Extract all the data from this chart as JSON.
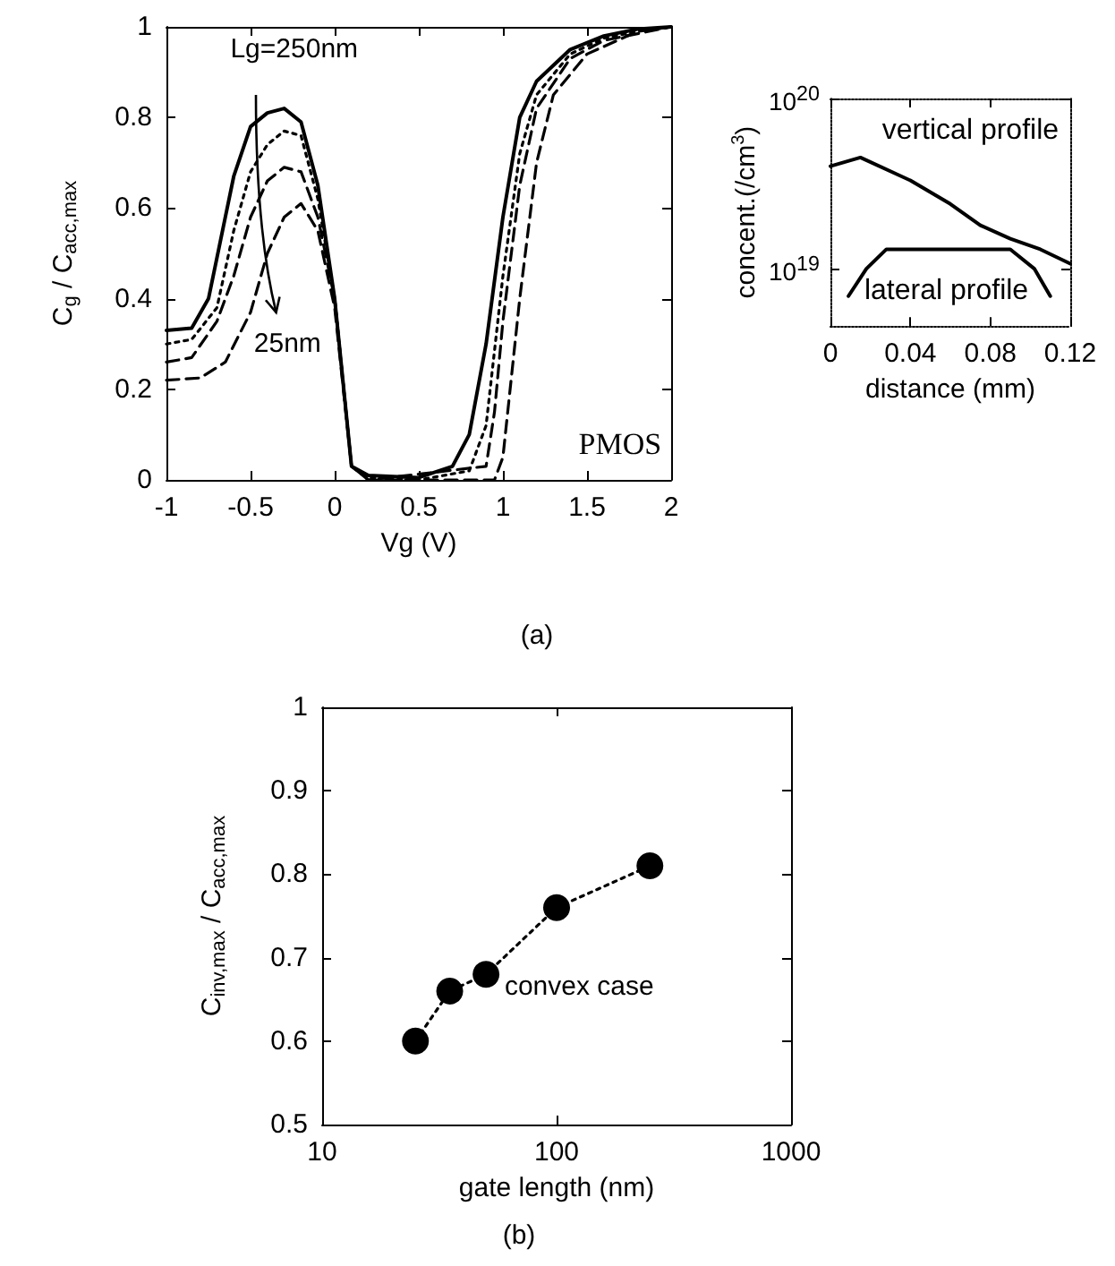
{
  "chart_data": [
    {
      "type": "line",
      "xlabel": "Vg (V)",
      "ylabel": "C$_{g}$ / C$_{acc,max}$",
      "annotations": [
        "Lg=250nm",
        "25nm",
        "PMOS",
        "(a)"
      ],
      "series": [
        {
          "color": "#000000",
          "line_style": "solid",
          "x": [
            -1,
            -0.85,
            -0.75,
            -0.6,
            -0.5,
            -0.4,
            -0.3,
            -0.2,
            -0.1,
            0,
            0.1,
            0.2,
            0.5,
            0.7,
            0.8,
            0.9,
            1.0,
            1.1,
            1.2,
            1.4,
            1.6,
            1.8,
            2
          ],
          "values": [
            0.33,
            0.335,
            0.4,
            0.67,
            0.78,
            0.81,
            0.82,
            0.79,
            0.65,
            0.4,
            0.03,
            0.01,
            0.005,
            0.03,
            0.1,
            0.3,
            0.58,
            0.8,
            0.88,
            0.95,
            0.98,
            0.995,
            1
          ]
        },
        {
          "color": "#000000",
          "line_style": "dotted",
          "x": [
            -1,
            -0.85,
            -0.7,
            -0.6,
            -0.5,
            -0.4,
            -0.3,
            -0.2,
            -0.1,
            0,
            0.1,
            0.2,
            0.5,
            0.8,
            0.9,
            1.0,
            1.1,
            1.2,
            1.4,
            1.6,
            1.8,
            2
          ],
          "values": [
            0.3,
            0.31,
            0.38,
            0.55,
            0.68,
            0.74,
            0.77,
            0.76,
            0.62,
            0.4,
            0.03,
            0.005,
            0,
            0.02,
            0.12,
            0.45,
            0.72,
            0.85,
            0.94,
            0.975,
            0.99,
            1
          ]
        },
        {
          "color": "#000000",
          "line_style": "dashed",
          "x": [
            -1,
            -0.85,
            -0.7,
            -0.6,
            -0.5,
            -0.4,
            -0.3,
            -0.2,
            -0.1,
            0,
            0.1,
            0.2,
            0.9,
            0.95,
            1.0,
            1.1,
            1.2,
            1.4,
            1.6,
            2
          ],
          "values": [
            0.26,
            0.27,
            0.35,
            0.45,
            0.58,
            0.66,
            0.69,
            0.68,
            0.58,
            0.4,
            0.03,
            0,
            0.03,
            0.15,
            0.35,
            0.65,
            0.82,
            0.93,
            0.97,
            1
          ]
        },
        {
          "color": "#000000",
          "line_style": "dashed",
          "x": [
            -1,
            -0.8,
            -0.65,
            -0.5,
            -0.4,
            -0.3,
            -0.2,
            -0.1,
            0,
            0.1,
            0.2,
            0.95,
            1.0,
            1.1,
            1.2,
            1.3,
            1.5,
            1.8,
            2
          ],
          "values": [
            0.22,
            0.225,
            0.26,
            0.37,
            0.5,
            0.58,
            0.61,
            0.55,
            0.38,
            0.03,
            0,
            0,
            0.05,
            0.4,
            0.7,
            0.85,
            0.94,
            0.99,
            1
          ]
        }
      ],
      "xlim": [
        -1,
        2
      ],
      "xticks": [
        -1,
        -0.5,
        0,
        0.5,
        1,
        1.5,
        2
      ],
      "ylim": [
        0,
        1
      ],
      "yticks": [
        0,
        0.2,
        0.4,
        0.6,
        0.8,
        1
      ],
      "marker": "none"
    },
    {
      "type": "line",
      "xlabel": "distance (mm)",
      "ylabel": "concent.(/cm$^{3}$)",
      "series": [
        {
          "name": "vertical profile",
          "color": "#000000",
          "x": [
            0,
            0.015,
            0.04,
            0.06,
            0.075,
            0.09,
            0.105,
            0.12
          ],
          "values": [
            4e+19,
            4.5e+19,
            3.3e+19,
            2.4e+19,
            1.8e+19,
            1.5e+19,
            1.3e+19,
            1.07e+19
          ]
        },
        {
          "name": "lateral profile",
          "color": "#000000",
          "x": [
            0.009,
            0.018,
            0.028,
            0.09,
            0.102,
            0.11
          ],
          "values": [
            6.9e+18,
            1e+19,
            1.3e+19,
            1.3e+19,
            1e+19,
            6.9e+18
          ]
        }
      ],
      "xlim": [
        0,
        0.12
      ],
      "xticks": [
        0,
        0.04,
        0.08,
        0.12
      ],
      "ylim": [
        4.6e+18,
        1e+20
      ],
      "yticks": [
        {
          "value": 1e+19,
          "label": "10$^{19}$"
        },
        {
          "value": 1e+20,
          "label": "10$^{20}$"
        }
      ],
      "log": "y",
      "marker": "none",
      "line_style": "solid"
    },
    {
      "type": "line",
      "xlabel": "gate length (nm)",
      "ylabel": "C$_{inv,max}$ / C$_{acc,max}$",
      "annotations": [
        "convex case",
        "(b)"
      ],
      "series": [
        {
          "color": "#000000",
          "x": [
            25,
            35,
            50,
            100,
            250
          ],
          "values": [
            0.6,
            0.66,
            0.68,
            0.76,
            0.81
          ]
        }
      ],
      "xlim": [
        10,
        1000
      ],
      "xticks": [
        10,
        100,
        1000
      ],
      "ylim": [
        0.5,
        1
      ],
      "yticks": [
        0.5,
        0.6,
        0.7,
        0.8,
        0.9,
        1
      ],
      "log": "x",
      "marker": "circle",
      "line_style": "dotted"
    }
  ]
}
